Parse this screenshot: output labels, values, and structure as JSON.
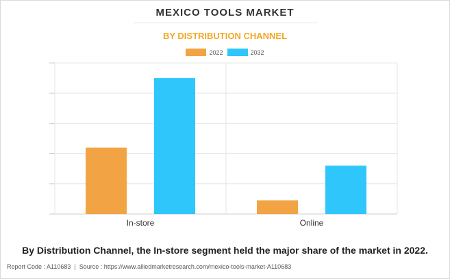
{
  "title": "MEXICO TOOLS MARKET",
  "subtitle": "BY DISTRIBUTION CHANNEL",
  "colors": {
    "subtitle": "#f5a623",
    "series_2022": "#f2a444",
    "series_2032": "#2ec6fb",
    "grid": "#e6e6e6"
  },
  "chart_data": {
    "type": "bar",
    "categories": [
      "In-store",
      "Online"
    ],
    "series": [
      {
        "name": "2022",
        "values": [
          2.2,
          0.45
        ]
      },
      {
        "name": "2032",
        "values": [
          4.5,
          1.6
        ]
      }
    ],
    "ylim": [
      0,
      5
    ],
    "grid": true,
    "legend_position": "top-center",
    "y_tick_labels_shown": false
  },
  "caption": "By Distribution Channel, the In-store segment held the major share of the market in 2022.",
  "footer": {
    "report_code": "Report Code : A110683",
    "source": "Source : https://www.alliedmarketresearch.com/mexico-tools-market-A110683"
  }
}
